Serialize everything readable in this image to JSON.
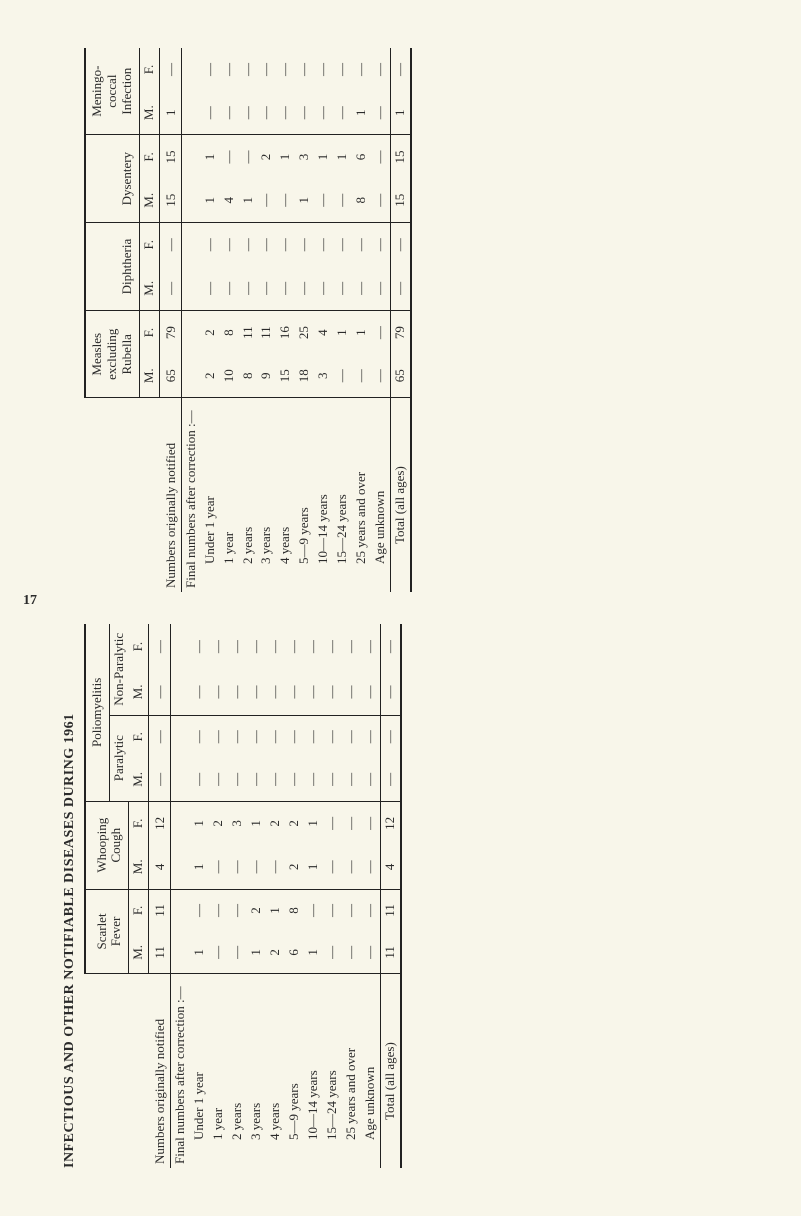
{
  "page_number": "17",
  "title": "INFECTIOUS AND OTHER NOTIFIABLE DISEASES DURING 1961",
  "stub": {
    "notified": "Numbers originally notified",
    "final": "Final numbers after correction :—",
    "ages": [
      "Under 1 year",
      "1 year",
      "2 years",
      "3 years",
      "4 years",
      "5—9 years",
      "10—14 years",
      "15—24 years",
      "25 years and over",
      "Age unknown"
    ],
    "total": "Total (all ages)"
  },
  "left_table": {
    "top_header": "Poliomyelitis",
    "groups": [
      {
        "name": "Scarlet\nFever"
      },
      {
        "name": "Whooping\nCough"
      },
      {
        "name_top": "Paralytic"
      },
      {
        "name_top": "Non-Paralytic"
      }
    ],
    "sex_labels": [
      "M.",
      "F.",
      "M.",
      "F.",
      "M.",
      "F.",
      "M.",
      "F."
    ],
    "notified_row": [
      "11",
      "11",
      "4",
      "12",
      "—",
      "—",
      "—",
      "—"
    ],
    "age_rows": [
      [
        "1",
        "—",
        "1",
        "1",
        "—",
        "—",
        "—",
        "—"
      ],
      [
        "—",
        "—",
        "—",
        "2",
        "—",
        "—",
        "—",
        "—"
      ],
      [
        "—",
        "—",
        "—",
        "3",
        "—",
        "—",
        "—",
        "—"
      ],
      [
        "1",
        "2",
        "—",
        "1",
        "—",
        "—",
        "—",
        "—"
      ],
      [
        "2",
        "1",
        "—",
        "2",
        "—",
        "—",
        "—",
        "—"
      ],
      [
        "6",
        "8",
        "2",
        "2",
        "—",
        "—",
        "—",
        "—"
      ],
      [
        "1",
        "—",
        "1",
        "1",
        "—",
        "—",
        "—",
        "—"
      ],
      [
        "—",
        "—",
        "—",
        "—",
        "—",
        "—",
        "—",
        "—"
      ],
      [
        "—",
        "—",
        "—",
        "—",
        "—",
        "—",
        "—",
        "—"
      ],
      [
        "—",
        "—",
        "—",
        "—",
        "—",
        "—",
        "—",
        "—"
      ]
    ],
    "total_row": [
      "11",
      "11",
      "4",
      "12",
      "—",
      "—",
      "—",
      "—"
    ]
  },
  "right_table": {
    "groups": [
      {
        "name": "Measles\nexcluding\nRubella"
      },
      {
        "name": "Diphtheria"
      },
      {
        "name": "Dysentery"
      },
      {
        "name": "Meningo-\ncoccal\nInfection"
      }
    ],
    "sex_labels": [
      "M.",
      "F.",
      "M.",
      "F.",
      "M.",
      "F.",
      "M.",
      "F."
    ],
    "notified_row": [
      "65",
      "79",
      "—",
      "—",
      "15",
      "15",
      "1",
      "—"
    ],
    "age_rows": [
      [
        "2",
        "2",
        "—",
        "—",
        "1",
        "1",
        "—",
        "—"
      ],
      [
        "10",
        "8",
        "—",
        "—",
        "4",
        "—",
        "—",
        "—"
      ],
      [
        "8",
        "11",
        "—",
        "—",
        "1",
        "—",
        "—",
        "—"
      ],
      [
        "9",
        "11",
        "—",
        "—",
        "—",
        "2",
        "—",
        "—"
      ],
      [
        "15",
        "16",
        "—",
        "—",
        "—",
        "1",
        "—",
        "—"
      ],
      [
        "18",
        "25",
        "—",
        "—",
        "1",
        "3",
        "—",
        "—"
      ],
      [
        "3",
        "4",
        "—",
        "—",
        "—",
        "1",
        "—",
        "—"
      ],
      [
        "—",
        "1",
        "—",
        "—",
        "—",
        "1",
        "—",
        "—"
      ],
      [
        "—",
        "1",
        "—",
        "—",
        "8",
        "6",
        "1",
        "—"
      ],
      [
        "—",
        "—",
        "—",
        "—",
        "—",
        "—",
        "—",
        "—"
      ]
    ],
    "total_row": [
      "65",
      "79",
      "—",
      "—",
      "15",
      "15",
      "1",
      "—"
    ]
  },
  "colors": {
    "bg": "#f8f6ea",
    "ink": "#2b2b2b",
    "rule": "#222222"
  }
}
